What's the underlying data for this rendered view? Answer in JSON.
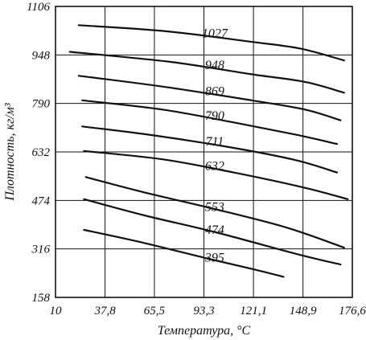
{
  "chart_data": {
    "type": "line",
    "title": "",
    "xlabel": "Температура, °C",
    "ylabel": "Плотность, кг/м³",
    "xlim": [
      10,
      176.6
    ],
    "ylim": [
      158,
      1106
    ],
    "x_ticks": [
      "10",
      "37,8",
      "65,5",
      "93,3",
      "121,1",
      "148,9",
      "176,6"
    ],
    "y_ticks": [
      "158",
      "316",
      "474",
      "632",
      "790",
      "948",
      "1106"
    ],
    "grid": true,
    "series": [
      {
        "name": "1027",
        "x": [
          23,
          72,
          121,
          148,
          172
        ],
        "y": [
          1045,
          1025,
          990,
          968,
          930
        ]
      },
      {
        "name": "948",
        "x": [
          18,
          75,
          120,
          150,
          172
        ],
        "y": [
          958,
          925,
          885,
          860,
          825
        ]
      },
      {
        "name": "869",
        "x": [
          23,
          70,
          120,
          150,
          170
        ],
        "y": [
          880,
          845,
          800,
          770,
          735
        ]
      },
      {
        "name": "790",
        "x": [
          25,
          70,
          110,
          145,
          168
        ],
        "y": [
          800,
          770,
          728,
          688,
          658
        ]
      },
      {
        "name": "711",
        "x": [
          25,
          65,
          110,
          145,
          168
        ],
        "y": [
          715,
          686,
          645,
          605,
          565
        ]
      },
      {
        "name": "632",
        "x": [
          26,
          70,
          110,
          150,
          174
        ],
        "y": [
          635,
          608,
          565,
          515,
          478
        ]
      },
      {
        "name": "553",
        "x": [
          27,
          60,
          100,
          140,
          172
        ],
        "y": [
          550,
          500,
          445,
          385,
          320
        ]
      },
      {
        "name": "474",
        "x": [
          26,
          60,
          100,
          145,
          170
        ],
        "y": [
          478,
          425,
          370,
          300,
          265
        ]
      },
      {
        "name": "395",
        "x": [
          26,
          60,
          95,
          121,
          138
        ],
        "y": [
          378,
          335,
          285,
          250,
          225
        ]
      }
    ]
  }
}
